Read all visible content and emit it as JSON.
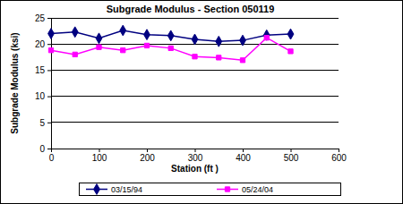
{
  "chart_data": {
    "type": "line",
    "title": "Subgrade Modulus - Section 050119",
    "x_label": "Station (ft )",
    "y_label": "Subgrade Modulus (ksi)",
    "x": [
      0,
      50,
      100,
      150,
      200,
      250,
      300,
      350,
      400,
      450,
      500
    ],
    "series": [
      {
        "name": "03/15/94",
        "color": "#000080",
        "marker": "diamond",
        "line_style": "solid",
        "values": [
          22.0,
          22.3,
          21.1,
          22.6,
          21.8,
          21.6,
          20.9,
          20.5,
          20.7,
          21.7,
          21.9
        ]
      },
      {
        "name": "05/24/04",
        "color": "#ff00ff",
        "marker": "square",
        "line_style": "solid",
        "values": [
          18.8,
          18.0,
          19.4,
          18.8,
          19.7,
          19.2,
          17.6,
          17.4,
          16.9,
          21.2,
          18.6
        ]
      }
    ],
    "xlim": [
      0,
      600
    ],
    "xticks": [
      0,
      100,
      200,
      300,
      400,
      500,
      600
    ],
    "ylim": [
      0,
      25
    ],
    "yticks": [
      0,
      5,
      10,
      15,
      20,
      25
    ],
    "grid": true,
    "legend": "bottom"
  }
}
